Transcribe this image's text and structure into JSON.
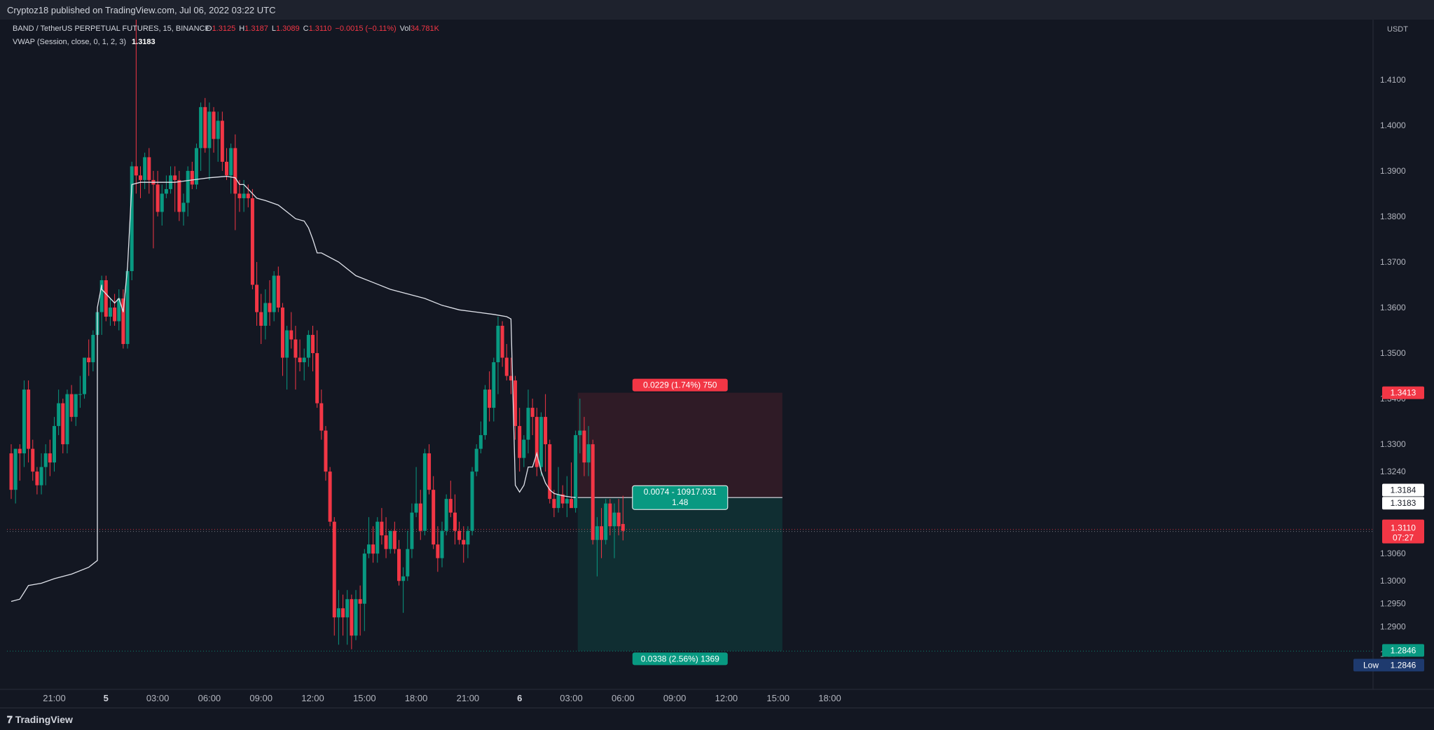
{
  "publish_info": "Cryptoz18 published on TradingView.com, Jul 06, 2022 03:22 UTC",
  "footer_brand": "TradingView",
  "colors": {
    "background": "#131722",
    "up": "#089981",
    "down": "#f23645",
    "vwap": "#e0e3eb",
    "text": "#d1d4dc",
    "axis_text": "#b2b5be"
  },
  "legend": {
    "symbol": "BAND / TetherUS PERPETUAL FUTURES, 15, BINANCE",
    "o_label": "O",
    "o": "1.3125",
    "h_label": "H",
    "h": "1.3187",
    "l_label": "L",
    "l": "1.3089",
    "c_label": "C",
    "c": "1.3110",
    "change": "−0.0015 (−0.11%)",
    "vol_label": "Vol",
    "vol": "34.781K",
    "vwap_label": "VWAP (Session, close, 0, 1, 2, 3)",
    "vwap_value": "1.3183"
  },
  "chart_data": {
    "type": "candlestick",
    "currency_label": "USDT",
    "ylim": [
      1.2762,
      1.4232
    ],
    "y_ticks": [
      "1.4100",
      "1.4000",
      "1.3900",
      "1.3800",
      "1.3700",
      "1.3600",
      "1.3500",
      "1.3400",
      "1.3300",
      "1.3240",
      "1.3060",
      "1.3000",
      "1.2950",
      "1.2900",
      "1.2840"
    ],
    "x_ticks": [
      {
        "label": "21:00",
        "bar": 10,
        "bold": false
      },
      {
        "label": "5",
        "bar": 22,
        "bold": true
      },
      {
        "label": "03:00",
        "bar": 34,
        "bold": false
      },
      {
        "label": "06:00",
        "bar": 46,
        "bold": false
      },
      {
        "label": "09:00",
        "bar": 58,
        "bold": false
      },
      {
        "label": "12:00",
        "bar": 70,
        "bold": false
      },
      {
        "label": "15:00",
        "bar": 82,
        "bold": false
      },
      {
        "label": "18:00",
        "bar": 94,
        "bold": false
      },
      {
        "label": "21:00",
        "bar": 106,
        "bold": false
      },
      {
        "label": "6",
        "bar": 118,
        "bold": true
      },
      {
        "label": "03:00",
        "bar": 130,
        "bold": false
      },
      {
        "label": "06:00",
        "bar": 142,
        "bold": false
      },
      {
        "label": "09:00",
        "bar": 154,
        "bold": false
      },
      {
        "label": "12:00",
        "bar": 166,
        "bold": false
      },
      {
        "label": "15:00",
        "bar": 178,
        "bold": false
      },
      {
        "label": "18:00",
        "bar": 190,
        "bold": false
      }
    ],
    "candles": [
      [
        1.328,
        1.33,
        1.318,
        1.32
      ],
      [
        1.32,
        1.329,
        1.317,
        1.329
      ],
      [
        1.329,
        1.33,
        1.322,
        1.328
      ],
      [
        1.328,
        1.344,
        1.325,
        1.342
      ],
      [
        1.342,
        1.344,
        1.326,
        1.329
      ],
      [
        1.329,
        1.331,
        1.322,
        1.324
      ],
      [
        1.324,
        1.325,
        1.319,
        1.321
      ],
      [
        1.321,
        1.328,
        1.319,
        1.325
      ],
      [
        1.325,
        1.33,
        1.321,
        1.328
      ],
      [
        1.328,
        1.331,
        1.323,
        1.326
      ],
      [
        1.326,
        1.336,
        1.324,
        1.334
      ],
      [
        1.334,
        1.342,
        1.332,
        1.339
      ],
      [
        1.339,
        1.34,
        1.328,
        1.33
      ],
      [
        1.33,
        1.342,
        1.328,
        1.341
      ],
      [
        1.341,
        1.343,
        1.335,
        1.336
      ],
      [
        1.336,
        1.341,
        1.334,
        1.341
      ],
      [
        1.341,
        1.345,
        1.338,
        1.341
      ],
      [
        1.341,
        1.349,
        1.34,
        1.349
      ],
      [
        1.349,
        1.353,
        1.345,
        1.348
      ],
      [
        1.348,
        1.355,
        1.346,
        1.354
      ],
      [
        1.354,
        1.36,
        1.35,
        1.359
      ],
      [
        1.359,
        1.367,
        1.354,
        1.366
      ],
      [
        1.366,
        1.367,
        1.357,
        1.358
      ],
      [
        1.358,
        1.362,
        1.356,
        1.36
      ],
      [
        1.36,
        1.363,
        1.356,
        1.357
      ],
      [
        1.357,
        1.364,
        1.355,
        1.362
      ],
      [
        1.362,
        1.364,
        1.351,
        1.352
      ],
      [
        1.352,
        1.369,
        1.351,
        1.368
      ],
      [
        1.368,
        1.392,
        1.366,
        1.391
      ],
      [
        1.391,
        1.429,
        1.385,
        1.389
      ],
      [
        1.389,
        1.391,
        1.384,
        1.388
      ],
      [
        1.388,
        1.394,
        1.386,
        1.393
      ],
      [
        1.393,
        1.395,
        1.385,
        1.388
      ],
      [
        1.388,
        1.39,
        1.373,
        1.387
      ],
      [
        1.387,
        1.39,
        1.38,
        1.381
      ],
      [
        1.381,
        1.387,
        1.378,
        1.385
      ],
      [
        1.385,
        1.389,
        1.384,
        1.386
      ],
      [
        1.386,
        1.391,
        1.385,
        1.389
      ],
      [
        1.389,
        1.391,
        1.381,
        1.388
      ],
      [
        1.388,
        1.39,
        1.379,
        1.381
      ],
      [
        1.381,
        1.385,
        1.378,
        1.383
      ],
      [
        1.383,
        1.391,
        1.38,
        1.39
      ],
      [
        1.39,
        1.392,
        1.386,
        1.387
      ],
      [
        1.387,
        1.396,
        1.386,
        1.395
      ],
      [
        1.395,
        1.405,
        1.39,
        1.404
      ],
      [
        1.404,
        1.406,
        1.394,
        1.395
      ],
      [
        1.395,
        1.405,
        1.388,
        1.403
      ],
      [
        1.403,
        1.404,
        1.394,
        1.397
      ],
      [
        1.397,
        1.403,
        1.392,
        1.401
      ],
      [
        1.401,
        1.403,
        1.39,
        1.392
      ],
      [
        1.392,
        1.395,
        1.388,
        1.389
      ],
      [
        1.389,
        1.396,
        1.385,
        1.395
      ],
      [
        1.395,
        1.398,
        1.377,
        1.385
      ],
      [
        1.385,
        1.388,
        1.381,
        1.384
      ],
      [
        1.384,
        1.388,
        1.381,
        1.385
      ],
      [
        1.385,
        1.387,
        1.382,
        1.384
      ],
      [
        1.384,
        1.386,
        1.364,
        1.365
      ],
      [
        1.365,
        1.37,
        1.356,
        1.359
      ],
      [
        1.359,
        1.363,
        1.352,
        1.356
      ],
      [
        1.356,
        1.364,
        1.353,
        1.361
      ],
      [
        1.361,
        1.366,
        1.356,
        1.359
      ],
      [
        1.359,
        1.368,
        1.357,
        1.367
      ],
      [
        1.367,
        1.369,
        1.359,
        1.36
      ],
      [
        1.36,
        1.361,
        1.345,
        1.349
      ],
      [
        1.349,
        1.356,
        1.342,
        1.355
      ],
      [
        1.355,
        1.359,
        1.351,
        1.353
      ],
      [
        1.353,
        1.356,
        1.342,
        1.349
      ],
      [
        1.349,
        1.353,
        1.346,
        1.348
      ],
      [
        1.348,
        1.351,
        1.344,
        1.349
      ],
      [
        1.349,
        1.355,
        1.347,
        1.354
      ],
      [
        1.354,
        1.356,
        1.346,
        1.35
      ],
      [
        1.35,
        1.355,
        1.338,
        1.339
      ],
      [
        1.339,
        1.342,
        1.331,
        1.333
      ],
      [
        1.333,
        1.334,
        1.322,
        1.324
      ],
      [
        1.324,
        1.325,
        1.312,
        1.313
      ],
      [
        1.313,
        1.314,
        1.288,
        1.292
      ],
      [
        1.292,
        1.298,
        1.286,
        1.294
      ],
      [
        1.294,
        1.297,
        1.288,
        1.292
      ],
      [
        1.292,
        1.298,
        1.286,
        1.296
      ],
      [
        1.296,
        1.297,
        1.285,
        1.288
      ],
      [
        1.288,
        1.298,
        1.287,
        1.296
      ],
      [
        1.296,
        1.299,
        1.288,
        1.295
      ],
      [
        1.295,
        1.307,
        1.289,
        1.306
      ],
      [
        1.306,
        1.314,
        1.305,
        1.308
      ],
      [
        1.308,
        1.312,
        1.304,
        1.306
      ],
      [
        1.306,
        1.314,
        1.304,
        1.313
      ],
      [
        1.313,
        1.316,
        1.308,
        1.31
      ],
      [
        1.31,
        1.314,
        1.305,
        1.307
      ],
      [
        1.307,
        1.311,
        1.306,
        1.311
      ],
      [
        1.311,
        1.313,
        1.306,
        1.307
      ],
      [
        1.307,
        1.309,
        1.299,
        1.3
      ],
      [
        1.3,
        1.303,
        1.293,
        1.301
      ],
      [
        1.301,
        1.311,
        1.3,
        1.307
      ],
      [
        1.307,
        1.317,
        1.305,
        1.315
      ],
      [
        1.315,
        1.325,
        1.314,
        1.317
      ],
      [
        1.317,
        1.32,
        1.309,
        1.311
      ],
      [
        1.311,
        1.329,
        1.31,
        1.328
      ],
      [
        1.328,
        1.33,
        1.319,
        1.32
      ],
      [
        1.32,
        1.323,
        1.307,
        1.308
      ],
      [
        1.308,
        1.312,
        1.302,
        1.305
      ],
      [
        1.305,
        1.313,
        1.303,
        1.311
      ],
      [
        1.311,
        1.319,
        1.31,
        1.318
      ],
      [
        1.318,
        1.322,
        1.314,
        1.315
      ],
      [
        1.315,
        1.319,
        1.308,
        1.311
      ],
      [
        1.311,
        1.313,
        1.308,
        1.309
      ],
      [
        1.309,
        1.312,
        1.304,
        1.308
      ],
      [
        1.308,
        1.312,
        1.305,
        1.311
      ],
      [
        1.311,
        1.325,
        1.31,
        1.324
      ],
      [
        1.324,
        1.33,
        1.323,
        1.329
      ],
      [
        1.329,
        1.335,
        1.328,
        1.332
      ],
      [
        1.332,
        1.343,
        1.331,
        1.342
      ],
      [
        1.342,
        1.346,
        1.335,
        1.338
      ],
      [
        1.338,
        1.349,
        1.335,
        1.348
      ],
      [
        1.348,
        1.358,
        1.341,
        1.356
      ],
      [
        1.356,
        1.357,
        1.347,
        1.349
      ],
      [
        1.349,
        1.352,
        1.344,
        1.345
      ],
      [
        1.345,
        1.349,
        1.341,
        1.344
      ],
      [
        1.344,
        1.345,
        1.331,
        1.334
      ],
      [
        1.334,
        1.338,
        1.324,
        1.327
      ],
      [
        1.327,
        1.332,
        1.325,
        1.331
      ],
      [
        1.331,
        1.342,
        1.328,
        1.338
      ],
      [
        1.338,
        1.34,
        1.332,
        1.336
      ],
      [
        1.336,
        1.338,
        1.323,
        1.325
      ],
      [
        1.325,
        1.337,
        1.323,
        1.336
      ],
      [
        1.336,
        1.341,
        1.324,
        1.33
      ],
      [
        1.33,
        1.331,
        1.317,
        1.318
      ],
      [
        1.318,
        1.32,
        1.314,
        1.316
      ],
      [
        1.316,
        1.325,
        1.315,
        1.319
      ],
      [
        1.319,
        1.321,
        1.316,
        1.317
      ],
      [
        1.317,
        1.323,
        1.314,
        1.318
      ],
      [
        1.318,
        1.326,
        1.317,
        1.316
      ],
      [
        1.316,
        1.333,
        1.315,
        1.332
      ],
      [
        1.332,
        1.34,
        1.328,
        1.333
      ],
      [
        1.333,
        1.336,
        1.323,
        1.326
      ],
      [
        1.326,
        1.334,
        1.323,
        1.33
      ],
      [
        1.33,
        1.331,
        1.308,
        1.309
      ],
      [
        1.309,
        1.314,
        1.301,
        1.312
      ],
      [
        1.312,
        1.316,
        1.305,
        1.309
      ],
      [
        1.309,
        1.318,
        1.308,
        1.317
      ],
      [
        1.317,
        1.318,
        1.31,
        1.312
      ],
      [
        1.312,
        1.317,
        1.305,
        1.315
      ],
      [
        1.315,
        1.318,
        1.31,
        1.312
      ],
      [
        1.3125,
        1.3187,
        1.3089,
        1.311
      ]
    ],
    "vwap": [
      [
        0,
        1.2955
      ],
      [
        2,
        1.296
      ],
      [
        3,
        1.2975
      ],
      [
        4,
        1.299
      ],
      [
        7,
        1.2995
      ],
      [
        10,
        1.3005
      ],
      [
        14,
        1.3015
      ],
      [
        18,
        1.303
      ],
      [
        20,
        1.3045
      ],
      [
        20,
        1.36
      ],
      [
        21,
        1.365
      ],
      [
        21,
        1.364
      ],
      [
        23,
        1.362
      ],
      [
        24,
        1.361
      ],
      [
        25,
        1.362
      ],
      [
        26,
        1.359
      ],
      [
        27,
        1.369
      ],
      [
        28,
        1.387
      ],
      [
        30,
        1.3875
      ],
      [
        34,
        1.3875
      ],
      [
        38,
        1.3875
      ],
      [
        42,
        1.388
      ],
      [
        46,
        1.3885
      ],
      [
        50,
        1.3888
      ],
      [
        52,
        1.3885
      ],
      [
        53,
        1.387
      ],
      [
        54,
        1.387
      ],
      [
        55,
        1.386
      ],
      [
        57,
        1.384
      ],
      [
        59,
        1.3835
      ],
      [
        62,
        1.3825
      ],
      [
        64,
        1.381
      ],
      [
        66,
        1.3795
      ],
      [
        68,
        1.379
      ],
      [
        69,
        1.3775
      ],
      [
        70,
        1.375
      ],
      [
        71,
        1.372
      ],
      [
        72,
        1.372
      ],
      [
        76,
        1.37
      ],
      [
        80,
        1.367
      ],
      [
        84,
        1.3655
      ],
      [
        88,
        1.364
      ],
      [
        92,
        1.363
      ],
      [
        96,
        1.362
      ],
      [
        100,
        1.3605
      ],
      [
        104,
        1.3595
      ],
      [
        108,
        1.359
      ],
      [
        112,
        1.3585
      ],
      [
        115,
        1.358
      ],
      [
        116,
        1.3575
      ],
      [
        117,
        1.321
      ],
      [
        118,
        1.3195
      ],
      [
        119,
        1.321
      ],
      [
        120,
        1.325
      ],
      [
        121,
        1.325
      ],
      [
        122,
        1.328
      ],
      [
        123,
        1.324
      ],
      [
        124,
        1.3215
      ],
      [
        125,
        1.32
      ],
      [
        126,
        1.3192
      ],
      [
        128,
        1.3187
      ],
      [
        130,
        1.3184
      ],
      [
        131,
        1.3183
      ]
    ],
    "last_price": 1.311,
    "low_price": 1.2846,
    "position": {
      "start_bar": 131.5,
      "end_bar": 179,
      "entry": 1.3183,
      "stop": 1.3413,
      "target": 1.2846,
      "stop_label": "0.0229 (1.74%) 750",
      "entry_label_1": "0.0074 - 10917.031",
      "entry_label_2": "1.48",
      "target_label": "0.0338 (2.56%) 1369"
    },
    "price_tags": {
      "stop": "1.3413",
      "vwap_a": "1.3184",
      "vwap_b": "1.3183",
      "last": "1.3110",
      "countdown": "07:27",
      "target": "1.2846",
      "low_label": "Low",
      "low": "1.2846"
    }
  }
}
